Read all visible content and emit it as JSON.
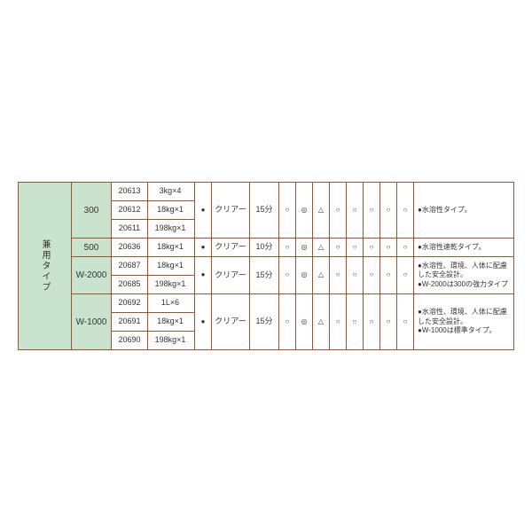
{
  "category_label": "兼用タイプ",
  "colors": {
    "border": "#a0522d",
    "tint": "#c9e3cf",
    "bg": "#ffffff",
    "text": "#333333"
  },
  "common": {
    "clear": "クリアー",
    "dot": "●"
  },
  "symbols_legend": [
    "○",
    "◎",
    "△",
    "○",
    "○",
    "○",
    "○",
    "○"
  ],
  "groups": [
    {
      "model": "300",
      "time": "15分",
      "note": "●水溶性タイプ。",
      "rows": [
        {
          "code": "20613",
          "size": "3kg×4"
        },
        {
          "code": "20612",
          "size": "18kg×1"
        },
        {
          "code": "20611",
          "size": "198kg×1"
        }
      ]
    },
    {
      "model": "500",
      "time": "10分",
      "note": "●水溶性速乾タイプ。",
      "rows": [
        {
          "code": "20636",
          "size": "18kg×1"
        }
      ]
    },
    {
      "model": "W-2000",
      "time": "15分",
      "note": "●水溶性、環境、人体に配慮した安全設計。\n●W-2000は300の強力タイプ",
      "rows": [
        {
          "code": "20687",
          "size": "18kg×1"
        },
        {
          "code": "20685",
          "size": "198kg×1"
        }
      ]
    },
    {
      "model": "W-1000",
      "time": "15分",
      "note": "●水溶性、環境、人体に配慮した安全設計。\n●W-1000は標準タイプ。",
      "rows": [
        {
          "code": "20692",
          "size": "1L×6"
        },
        {
          "code": "20691",
          "size": "18kg×1"
        },
        {
          "code": "20690",
          "size": "198kg×1"
        }
      ]
    }
  ]
}
